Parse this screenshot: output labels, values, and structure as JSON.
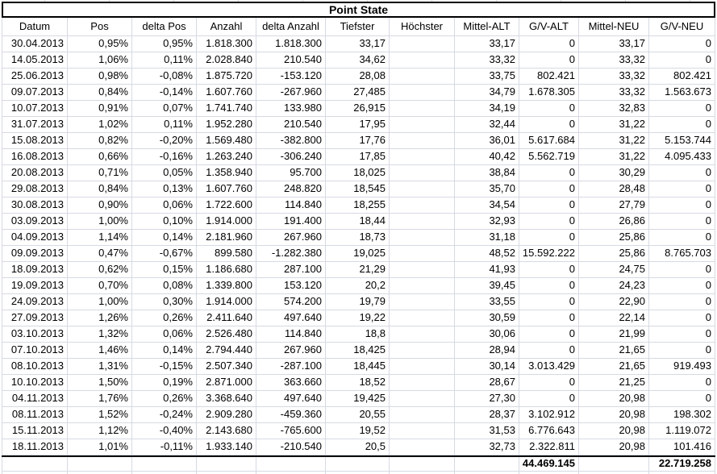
{
  "sheet": {
    "title": "Point State",
    "columns": [
      "Datum",
      "Pos",
      "delta Pos",
      "Anzahl",
      "delta Anzahl",
      "Tiefster",
      "Höchster",
      "Mittel-ALT",
      "G/V-ALT",
      "Mittel-NEU",
      "G/V-NEU"
    ],
    "rows": [
      [
        "30.04.2013",
        "0,95%",
        "0,95%",
        "1.818.300",
        "1.818.300",
        "33,17",
        "",
        "33,17",
        "0",
        "33,17",
        "0"
      ],
      [
        "14.05.2013",
        "1,06%",
        "0,11%",
        "2.028.840",
        "210.540",
        "34,62",
        "",
        "33,32",
        "0",
        "33,32",
        "0"
      ],
      [
        "25.06.2013",
        "0,98%",
        "-0,08%",
        "1.875.720",
        "-153.120",
        "28,08",
        "",
        "33,75",
        "802.421",
        "33,32",
        "802.421"
      ],
      [
        "09.07.2013",
        "0,84%",
        "-0,14%",
        "1.607.760",
        "-267.960",
        "27,485",
        "",
        "34,79",
        "1.678.305",
        "33,32",
        "1.563.673"
      ],
      [
        "10.07.2013",
        "0,91%",
        "0,07%",
        "1.741.740",
        "133.980",
        "26,915",
        "",
        "34,19",
        "0",
        "32,83",
        "0"
      ],
      [
        "31.07.2013",
        "1,02%",
        "0,11%",
        "1.952.280",
        "210.540",
        "17,95",
        "",
        "32,44",
        "0",
        "31,22",
        "0"
      ],
      [
        "15.08.2013",
        "0,82%",
        "-0,20%",
        "1.569.480",
        "-382.800",
        "17,76",
        "",
        "36,01",
        "5.617.684",
        "31,22",
        "5.153.744"
      ],
      [
        "16.08.2013",
        "0,66%",
        "-0,16%",
        "1.263.240",
        "-306.240",
        "17,85",
        "",
        "40,42",
        "5.562.719",
        "31,22",
        "4.095.433"
      ],
      [
        "20.08.2013",
        "0,71%",
        "0,05%",
        "1.358.940",
        "95.700",
        "18,025",
        "",
        "38,84",
        "0",
        "30,29",
        "0"
      ],
      [
        "29.08.2013",
        "0,84%",
        "0,13%",
        "1.607.760",
        "248.820",
        "18,545",
        "",
        "35,70",
        "0",
        "28,48",
        "0"
      ],
      [
        "30.08.2013",
        "0,90%",
        "0,06%",
        "1.722.600",
        "114.840",
        "18,255",
        "",
        "34,54",
        "0",
        "27,79",
        "0"
      ],
      [
        "03.09.2013",
        "1,00%",
        "0,10%",
        "1.914.000",
        "191.400",
        "18,44",
        "",
        "32,93",
        "0",
        "26,86",
        "0"
      ],
      [
        "04.09.2013",
        "1,14%",
        "0,14%",
        "2.181.960",
        "267.960",
        "18,73",
        "",
        "31,18",
        "0",
        "25,86",
        "0"
      ],
      [
        "09.09.2013",
        "0,47%",
        "-0,67%",
        "899.580",
        "-1.282.380",
        "19,025",
        "",
        "48,52",
        "15.592.222",
        "25,86",
        "8.765.703"
      ],
      [
        "18.09.2013",
        "0,62%",
        "0,15%",
        "1.186.680",
        "287.100",
        "21,29",
        "",
        "41,93",
        "0",
        "24,75",
        "0"
      ],
      [
        "19.09.2013",
        "0,70%",
        "0,08%",
        "1.339.800",
        "153.120",
        "20,2",
        "",
        "39,45",
        "0",
        "24,23",
        "0"
      ],
      [
        "24.09.2013",
        "1,00%",
        "0,30%",
        "1.914.000",
        "574.200",
        "19,79",
        "",
        "33,55",
        "0",
        "22,90",
        "0"
      ],
      [
        "27.09.2013",
        "1,26%",
        "0,26%",
        "2.411.640",
        "497.640",
        "19,22",
        "",
        "30,59",
        "0",
        "22,14",
        "0"
      ],
      [
        "03.10.2013",
        "1,32%",
        "0,06%",
        "2.526.480",
        "114.840",
        "18,8",
        "",
        "30,06",
        "0",
        "21,99",
        "0"
      ],
      [
        "07.10.2013",
        "1,46%",
        "0,14%",
        "2.794.440",
        "267.960",
        "18,425",
        "",
        "28,94",
        "0",
        "21,65",
        "0"
      ],
      [
        "08.10.2013",
        "1,31%",
        "-0,15%",
        "2.507.340",
        "-287.100",
        "18,445",
        "",
        "30,14",
        "3.013.429",
        "21,65",
        "919.493"
      ],
      [
        "10.10.2013",
        "1,50%",
        "0,19%",
        "2.871.000",
        "363.660",
        "18,52",
        "",
        "28,67",
        "0",
        "21,25",
        "0"
      ],
      [
        "04.11.2013",
        "1,76%",
        "0,26%",
        "3.368.640",
        "497.640",
        "19,425",
        "",
        "27,30",
        "0",
        "20,98",
        "0"
      ],
      [
        "08.11.2013",
        "1,52%",
        "-0,24%",
        "2.909.280",
        "-459.360",
        "20,55",
        "",
        "28,37",
        "3.102.912",
        "20,98",
        "198.302"
      ],
      [
        "15.11.2013",
        "1,12%",
        "-0,40%",
        "2.143.680",
        "-765.600",
        "19,52",
        "",
        "31,53",
        "6.776.643",
        "20,98",
        "1.119.072"
      ],
      [
        "18.11.2013",
        "1,01%",
        "-0,11%",
        "1.933.140",
        "-210.540",
        "20,5",
        "",
        "32,73",
        "2.322.811",
        "20,98",
        "101.416"
      ]
    ],
    "totals": {
      "gv_alt_total": "44.469.145",
      "gv_neu_total": "22.719.258"
    }
  }
}
